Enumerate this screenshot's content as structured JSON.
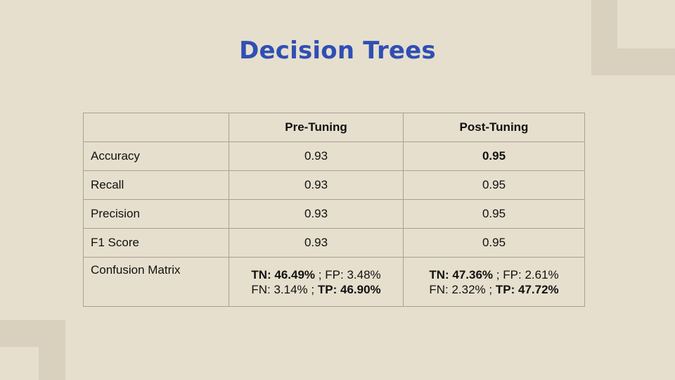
{
  "slide": {
    "title": "Decision Trees"
  },
  "table": {
    "headers": [
      "",
      "Pre-Tuning",
      "Post-Tuning"
    ],
    "rows": [
      {
        "label": "Accuracy",
        "pre": "0.93",
        "post": "0.95"
      },
      {
        "label": "Recall",
        "pre": "0.93",
        "post": "0.95"
      },
      {
        "label": "Precision",
        "pre": "0.93",
        "post": "0.95"
      },
      {
        "label": "F1 Score",
        "pre": "0.93",
        "post": "0.95"
      }
    ],
    "confusion": {
      "label": "Confusion Matrix",
      "pre": {
        "tn_label": "TN:",
        "tn": "46.49%",
        "fp_label": "FP:",
        "fp": "3.48%",
        "fn_label": "FN:",
        "fn": "3.14%",
        "tp_label": "TP:",
        "tp": "46.90%"
      },
      "post": {
        "tn_label": "TN:",
        "tn": "47.36%",
        "fp_label": "FP:",
        "fp": "2.61%",
        "fn_label": "FN:",
        "fn": "2.32%",
        "tp_label": "TP:",
        "tp": "47.72%"
      },
      "separator": ";"
    }
  },
  "colors": {
    "background": "#e6dfcd",
    "decoration": "#d9d0bd",
    "title": "#2f4fb5",
    "border": "#a8a192"
  }
}
